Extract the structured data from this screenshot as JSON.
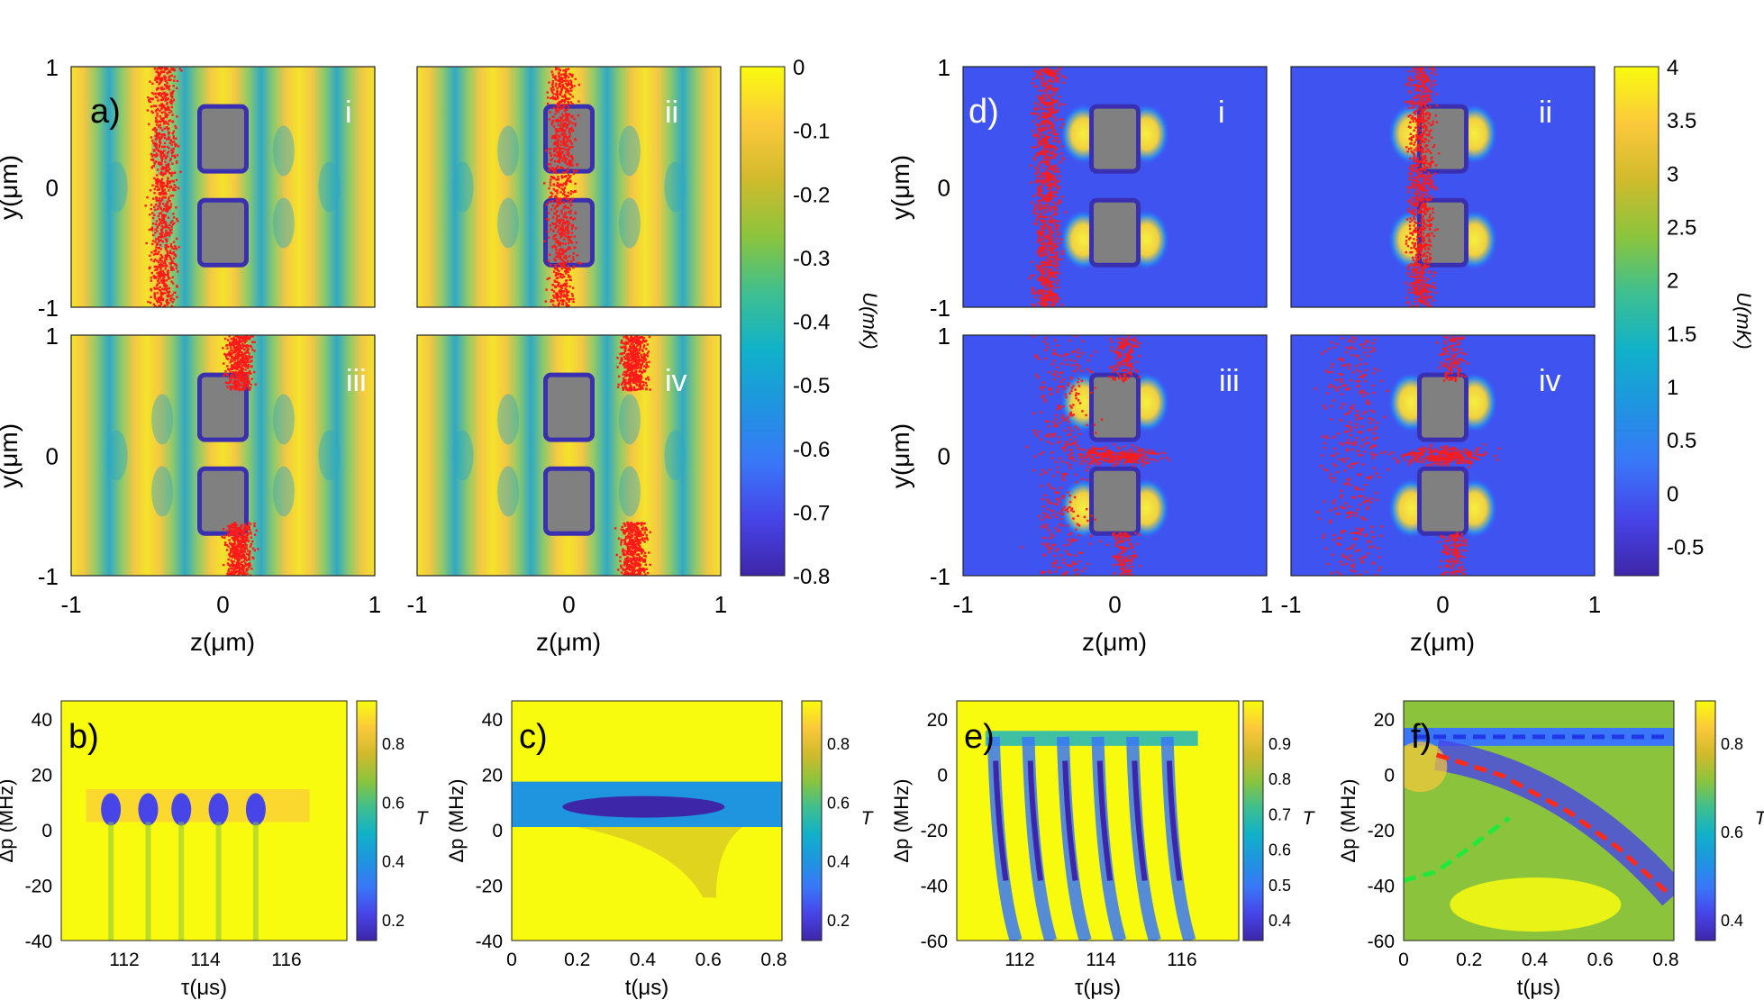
{
  "colors": {
    "colormap": [
      "#3e26a8",
      "#4744e8",
      "#3a77f8",
      "#1f95e0",
      "#10b1c9",
      "#3ebf8f",
      "#8bc43c",
      "#d0ba2c",
      "#fbc93b",
      "#f9fb0e"
    ],
    "map_dark": [
      "#2b6fa8",
      "#2fa9c4",
      "#8ec96a",
      "#f3c843",
      "#f5e32a"
    ],
    "map_d": [
      "#2c3fe6",
      "#3f53f0",
      "#2b86f2",
      "#f0d040",
      "#f6f040"
    ],
    "atom": "#ff1a1a",
    "obstacle": "#808080",
    "obstacle_edge": "#3a2fb0",
    "dash_blue": "#2238e8",
    "dash_red": "#ff2a1a",
    "dash_green": "#23e83a"
  },
  "chart_data": [
    {
      "id": "a",
      "type": "heatmap",
      "label": "a)",
      "subpanels": [
        "i",
        "ii",
        "iii",
        "iv"
      ],
      "xlabel": "z(μm)",
      "ylabel": "y(μm)",
      "xlim": [
        -1,
        1
      ],
      "ylim": [
        -1,
        1
      ],
      "xticks": [
        "-1",
        "0",
        "1"
      ],
      "yticks": [
        "1",
        "0",
        "-1"
      ],
      "cloud_z": [
        -0.4,
        -0.05,
        0.1,
        0.42
      ],
      "colorbar": {
        "label": "U(mK)",
        "range": [
          -0.8,
          0
        ],
        "ticks": [
          "0",
          "-0.1",
          "-0.2",
          "-0.3",
          "-0.4",
          "-0.5",
          "-0.6",
          "-0.7",
          "-0.8"
        ]
      }
    },
    {
      "id": "d",
      "type": "heatmap",
      "label": "d)",
      "subpanels": [
        "i",
        "ii",
        "iii",
        "iv"
      ],
      "xlabel": "z(μm)",
      "ylabel": "y(μm)",
      "xlim": [
        -1,
        1
      ],
      "ylim": [
        -1,
        1
      ],
      "xticks": [
        "-1",
        "0",
        "1"
      ],
      "yticks": [
        "1",
        "0",
        "-1"
      ],
      "cloud_z": [
        -0.45,
        -0.15,
        -0.35,
        -0.6
      ],
      "colorbar": {
        "label": "U(mK)",
        "range": [
          -0.8,
          4
        ],
        "ticks": [
          "4",
          "3.5",
          "3",
          "2.5",
          "2",
          "1.5",
          "1",
          "0.5",
          "0",
          "-0.5"
        ]
      }
    },
    {
      "id": "b",
      "type": "heatmap",
      "label": "b)",
      "xlabel": "τ(μs)",
      "ylabel": "Δp (MHz)",
      "xlim": [
        110.3,
        117.2
      ],
      "ylim": [
        -45,
        50
      ],
      "xticks": [
        "112",
        "114",
        "116"
      ],
      "yticks": [
        "40",
        "20",
        "0",
        "-20",
        "-40"
      ],
      "resonances_tau": [
        111.5,
        112.4,
        113.2,
        114.1,
        115.0
      ],
      "colorbar": {
        "label": "T",
        "ticks": [
          "0.8",
          "0.6",
          "0.4",
          "0.2"
        ]
      }
    },
    {
      "id": "c",
      "type": "heatmap",
      "label": "c)",
      "xlabel": "t(μs)",
      "ylabel": "Δp (MHz)",
      "xlim": [
        0,
        0.82
      ],
      "ylim": [
        -45,
        50
      ],
      "xticks": [
        "0",
        "0.2",
        "0.4",
        "0.6",
        "0.8"
      ],
      "yticks": [
        "40",
        "20",
        "0",
        "-20",
        "-40"
      ],
      "colorbar": {
        "label": "T",
        "ticks": [
          "0.8",
          "0.6",
          "0.4",
          "0.2"
        ]
      }
    },
    {
      "id": "e",
      "type": "heatmap",
      "label": "e)",
      "xlabel": "τ(μs)",
      "ylabel": "Δp (MHz)",
      "xlim": [
        110.3,
        117.2
      ],
      "ylim": [
        -60,
        20
      ],
      "xticks": [
        "112",
        "114",
        "116"
      ],
      "yticks": [
        "20",
        "0",
        "-20",
        "-40",
        "-60"
      ],
      "colorbar": {
        "label": "T",
        "ticks": [
          "0.9",
          "0.8",
          "0.7",
          "0.6",
          "0.5",
          "0.4"
        ]
      }
    },
    {
      "id": "f",
      "type": "heatmap",
      "label": "f)",
      "xlabel": "t(μs)",
      "ylabel": "Δp (MHz)",
      "xlim": [
        0,
        0.82
      ],
      "ylim": [
        -60,
        20
      ],
      "xticks": [
        "0",
        "0.2",
        "0.4",
        "0.6",
        "0.8"
      ],
      "yticks": [
        "20",
        "0",
        "-20",
        "-40",
        "-60"
      ],
      "overlays": {
        "blue_dashed": {
          "t": [
            0.03,
            0.8
          ],
          "delta": [
            8,
            8
          ]
        },
        "red_dashed": {
          "t": [
            0.1,
            0.3,
            0.5,
            0.65,
            0.8
          ],
          "delta": [
            2,
            -5,
            -17,
            -29,
            -44
          ]
        },
        "green_dashed": {
          "t": [
            0.0,
            0.1,
            0.2,
            0.32
          ],
          "delta": [
            -40,
            -37,
            -29,
            -19
          ]
        }
      },
      "colorbar": {
        "label": "T",
        "ticks": [
          "0.8",
          "0.6",
          "0.4"
        ]
      }
    }
  ]
}
